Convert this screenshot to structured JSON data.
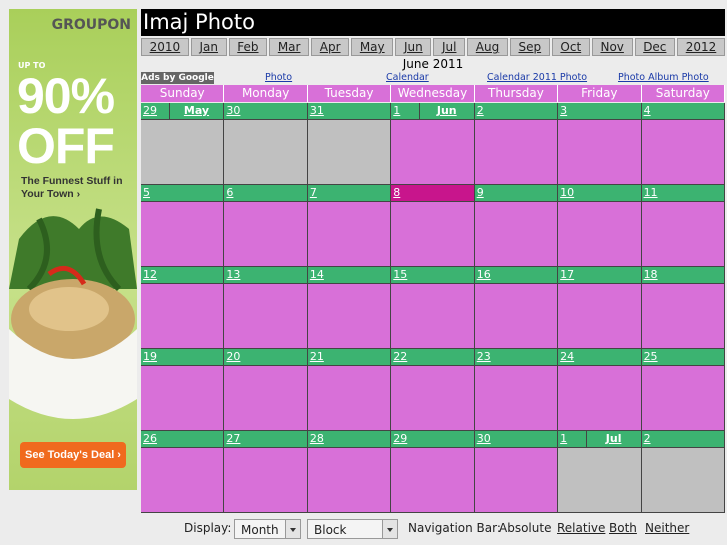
{
  "ad": {
    "brand": "GROUPON",
    "lead": "UP TO",
    "headline": "90%",
    "headline2": "OFF",
    "tagline": "The Funnest Stuff in Your Town ›",
    "button": "See Today's Deal ›"
  },
  "header": {
    "title": "Imaj Photo"
  },
  "nav": {
    "items": [
      "2010",
      "Jan",
      "Feb",
      "Mar",
      "Apr",
      "May",
      "Jun",
      "Jul",
      "Aug",
      "Sep",
      "Oct",
      "Nov",
      "Dec",
      "2012"
    ]
  },
  "ads": {
    "label": "Ads by Google",
    "links": [
      "Photo",
      "Calendar",
      "Calendar 2011 Photo",
      "Photo Album Photo"
    ]
  },
  "calendar": {
    "title": "June 2011",
    "weekdays": [
      "Sunday",
      "Monday",
      "Tuesday",
      "Wednesday",
      "Thursday",
      "Friday",
      "Saturday"
    ],
    "weeks": [
      [
        {
          "date": 29,
          "month": "May"
        },
        {
          "date": 30
        },
        {
          "date": 31
        },
        {
          "date": 1,
          "month": "Jun"
        },
        {
          "date": 2
        },
        {
          "date": 3
        },
        {
          "date": 4
        }
      ],
      [
        {
          "date": 5
        },
        {
          "date": 6
        },
        {
          "date": 7
        },
        {
          "date": 8,
          "today": true
        },
        {
          "date": 9
        },
        {
          "date": 10
        },
        {
          "date": 11
        }
      ],
      [
        {
          "date": 12
        },
        {
          "date": 13
        },
        {
          "date": 14
        },
        {
          "date": 15
        },
        {
          "date": 16
        },
        {
          "date": 17
        },
        {
          "date": 18
        }
      ],
      [
        {
          "date": 19
        },
        {
          "date": 20
        },
        {
          "date": 21
        },
        {
          "date": 22
        },
        {
          "date": 23
        },
        {
          "date": 24
        },
        {
          "date": 25
        }
      ],
      [
        {
          "date": 26
        },
        {
          "date": 27
        },
        {
          "date": 28
        },
        {
          "date": 29
        },
        {
          "date": 30
        },
        {
          "date": 1,
          "month": "Jul"
        },
        {
          "date": 2
        }
      ]
    ],
    "colors": {
      "other_month": "#c0c0c0",
      "current_month": "#d870d8",
      "date_bar": "#3cb371",
      "today": "#c8158c"
    }
  },
  "controls": {
    "display_label": "Display:",
    "view": "Month",
    "layout": "Block",
    "nav_label": "Navigation Bar:",
    "nav_options": [
      "Absolute",
      "Relative",
      "Both",
      "Neither"
    ]
  }
}
